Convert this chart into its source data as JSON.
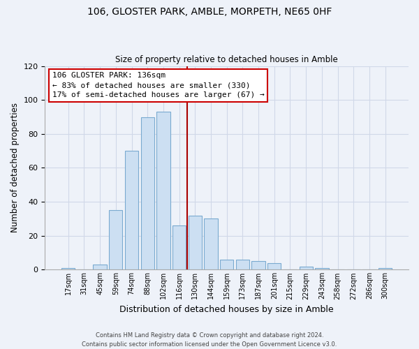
{
  "title": "106, GLOSTER PARK, AMBLE, MORPETH, NE65 0HF",
  "subtitle": "Size of property relative to detached houses in Amble",
  "xlabel": "Distribution of detached houses by size in Amble",
  "ylabel": "Number of detached properties",
  "bar_labels": [
    "17sqm",
    "31sqm",
    "45sqm",
    "59sqm",
    "74sqm",
    "88sqm",
    "102sqm",
    "116sqm",
    "130sqm",
    "144sqm",
    "159sqm",
    "173sqm",
    "187sqm",
    "201sqm",
    "215sqm",
    "229sqm",
    "243sqm",
    "258sqm",
    "272sqm",
    "286sqm",
    "300sqm"
  ],
  "bar_values": [
    1,
    0,
    3,
    35,
    70,
    90,
    93,
    26,
    32,
    30,
    6,
    6,
    5,
    4,
    0,
    2,
    1,
    0,
    0,
    0,
    1
  ],
  "bar_color": "#ccdff2",
  "bar_edge_color": "#7aaad0",
  "ylim": [
    0,
    120
  ],
  "yticks": [
    0,
    20,
    40,
    60,
    80,
    100,
    120
  ],
  "property_line_x": 7.5,
  "property_line_color": "#aa0000",
  "annotation_title": "106 GLOSTER PARK: 136sqm",
  "annotation_line1": "← 83% of detached houses are smaller (330)",
  "annotation_line2": "17% of semi-detached houses are larger (67) →",
  "annotation_box_color": "#ffffff",
  "annotation_box_edge": "#cc0000",
  "footer_line1": "Contains HM Land Registry data © Crown copyright and database right 2024.",
  "footer_line2": "Contains public sector information licensed under the Open Government Licence v3.0.",
  "background_color": "#eef2f9",
  "grid_color": "#d0d8e8"
}
